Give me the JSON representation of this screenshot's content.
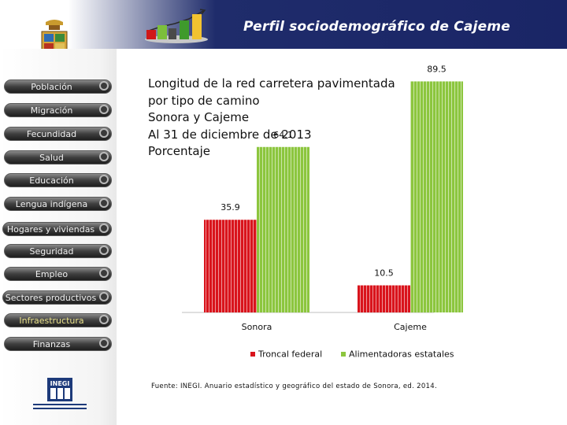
{
  "header": {
    "title": "Perfil sociodemográfico de Cajeme"
  },
  "sidebar": {
    "items": [
      {
        "label": "Población"
      },
      {
        "label": "Migración"
      },
      {
        "label": "Fecundidad"
      },
      {
        "label": "Salud"
      },
      {
        "label": "Educación"
      },
      {
        "label": "Lengua indígena"
      },
      {
        "label": "Hogares y viviendas"
      },
      {
        "label": "Seguridad"
      },
      {
        "label": "Empleo"
      },
      {
        "label": "Sectores productivos"
      },
      {
        "label": "Infraestructura",
        "active": true
      },
      {
        "label": "Finanzas"
      }
    ]
  },
  "chart_data": {
    "type": "bar",
    "title_lines": [
      "Longitud de la red carretera pavimentada",
      "por tipo de camino",
      "Sonora y Cajeme",
      "Al 31 de diciembre de 2013",
      "Porcentaje"
    ],
    "categories": [
      "Sonora",
      "Cajeme"
    ],
    "series": [
      {
        "name": "Troncal federal",
        "values": [
          35.9,
          10.5
        ],
        "color": "#d9141c"
      },
      {
        "name": "Alimentadoras estatales",
        "values": [
          64.1,
          89.5
        ],
        "color": "#8cc63e"
      }
    ],
    "value_labels": [
      [
        "35.9",
        "10.5"
      ],
      [
        "64.1",
        "89.5"
      ]
    ],
    "ylim": [
      0,
      100
    ],
    "legend_position": "bottom",
    "grid": false
  },
  "source": "Fuente: INEGI. Anuario estadístico y geográfico del estado de Sonora, ed. 2014.",
  "colors": {
    "header_navy": "#1f2c6b",
    "red": "#d9141c",
    "green": "#8cc63e"
  },
  "icons": [
    "bar-chart-growth-icon",
    "coat-of-arms-icon",
    "inegi-logo-icon"
  ]
}
